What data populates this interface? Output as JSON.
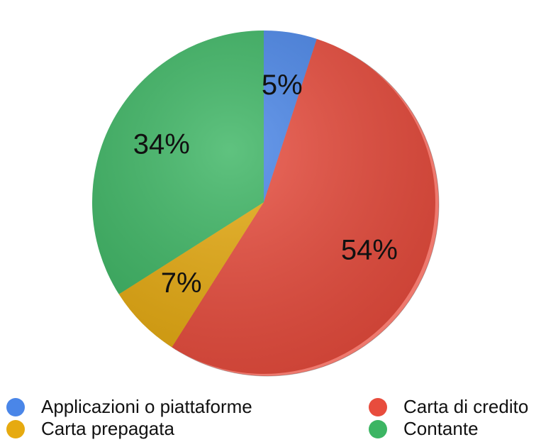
{
  "chart_data": {
    "type": "pie",
    "categories": [
      "Applicazioni o piattaforme",
      "Carta di credito",
      "Carta prepagata",
      "Contante"
    ],
    "values": [
      5,
      54,
      7,
      34
    ],
    "value_labels": [
      "5%",
      "54%",
      "7%",
      "34%"
    ],
    "colors": [
      "#4a86e8",
      "#e84c3d",
      "#e6aa10",
      "#3cb563"
    ]
  }
}
